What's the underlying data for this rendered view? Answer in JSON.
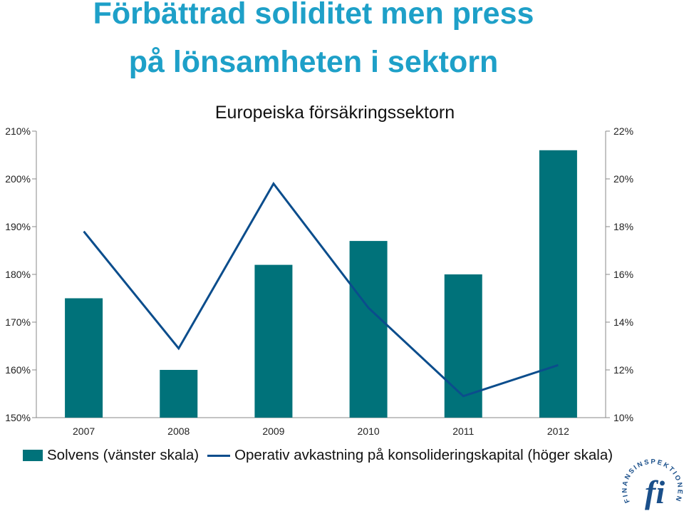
{
  "header": {
    "title_line1": "Förbättrad soliditet men press",
    "title_line2": "på lönsamheten i sektorn"
  },
  "colors": {
    "title": "#1ea0c8",
    "bars": "#00727a",
    "line": "#0b4d8c"
  },
  "chart_data": {
    "type": "bar",
    "title": "Europeiska försäkringssektorn",
    "categories": [
      "2007",
      "2008",
      "2009",
      "2010",
      "2011",
      "2012"
    ],
    "series": [
      {
        "name": "Solvens (vänster skala)",
        "type": "bar",
        "axis": "left",
        "values": [
          175,
          160,
          182,
          187,
          180,
          206
        ]
      },
      {
        "name": "Operativ avkastning på konsolideringskapital (höger skala)",
        "type": "line",
        "axis": "right",
        "values": [
          17.8,
          12.9,
          19.8,
          14.6,
          10.9,
          12.2
        ]
      }
    ],
    "left_axis": {
      "ylim": [
        150,
        210
      ],
      "ticks": [
        "150%",
        "160%",
        "170%",
        "180%",
        "190%",
        "200%",
        "210%"
      ]
    },
    "right_axis": {
      "ylim": [
        10,
        22
      ],
      "ticks": [
        "10%",
        "12%",
        "14%",
        "16%",
        "18%",
        "20%",
        "22%"
      ]
    },
    "grid": false,
    "legend": "bottom"
  },
  "logo": {
    "text": "FINANSINSPEKTIONEN",
    "mark": "fi"
  }
}
